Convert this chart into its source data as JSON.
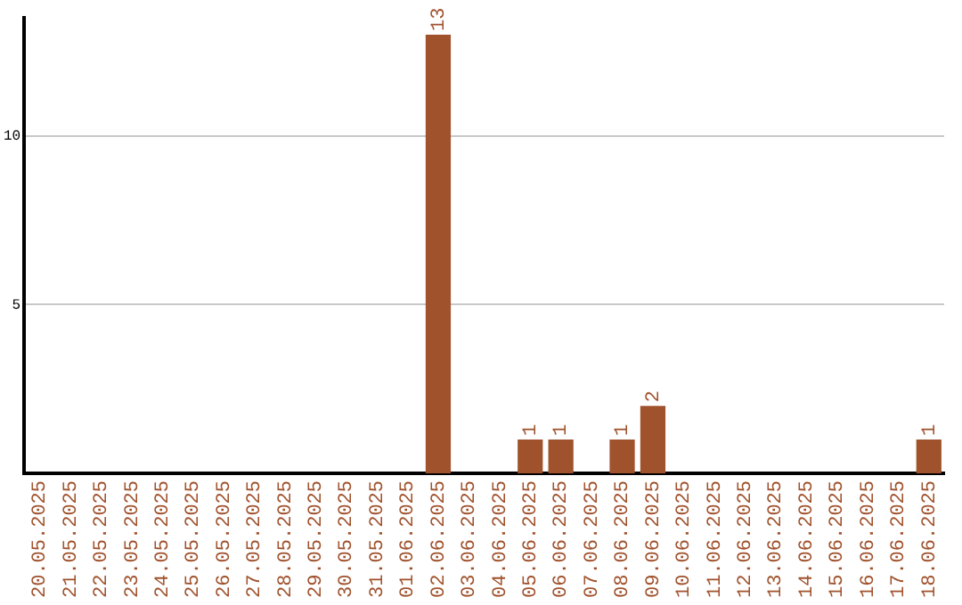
{
  "chart_data": {
    "type": "bar",
    "categories": [
      "20.05.2025",
      "21.05.2025",
      "22.05.2025",
      "23.05.2025",
      "24.05.2025",
      "25.05.2025",
      "26.05.2025",
      "27.05.2025",
      "28.05.2025",
      "29.05.2025",
      "30.05.2025",
      "31.05.2025",
      "01.06.2025",
      "02.06.2025",
      "03.06.2025",
      "04.06.2025",
      "05.06.2025",
      "06.06.2025",
      "07.06.2025",
      "08.06.2025",
      "09.06.2025",
      "10.06.2025",
      "11.06.2025",
      "12.06.2025",
      "13.06.2025",
      "14.06.2025",
      "15.06.2025",
      "16.06.2025",
      "17.06.2025",
      "18.06.2025"
    ],
    "values": [
      0,
      0,
      0,
      0,
      0,
      0,
      0,
      0,
      0,
      0,
      0,
      0,
      0,
      13,
      0,
      0,
      1,
      1,
      0,
      1,
      2,
      0,
      0,
      0,
      0,
      0,
      0,
      0,
      0,
      1
    ],
    "value_labels": [
      null,
      null,
      null,
      null,
      null,
      null,
      null,
      null,
      null,
      null,
      null,
      null,
      null,
      "13",
      null,
      null,
      "1",
      "1",
      null,
      "1",
      "2",
      null,
      null,
      null,
      null,
      null,
      null,
      null,
      null,
      "1"
    ],
    "color": "#a0522d",
    "ylim": [
      0,
      13.5
    ],
    "yticks": [
      5,
      10
    ],
    "grid": "y",
    "legend": false
  }
}
